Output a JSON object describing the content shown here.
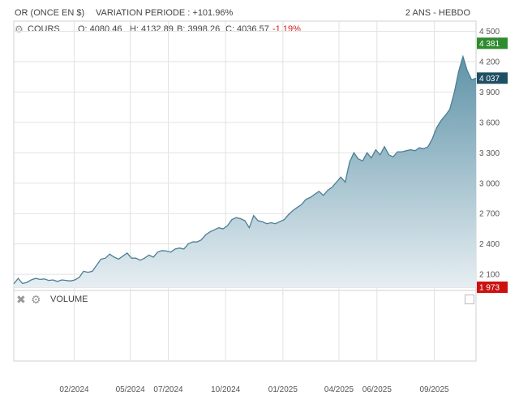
{
  "header": {
    "instrument": "OR (ONCE EN $)",
    "variation": "VARIATION PERIODE : +101.96%",
    "period": "2 ANS - HEBDO"
  },
  "toolbar": {
    "series_label": "COURS",
    "open": "O: 4080.46",
    "high": "H: 4132.89",
    "low": "B: 3998.26",
    "close": "C: 4036.57",
    "change": "-1.19%",
    "icon": "gear-icon"
  },
  "volume_panel": {
    "label": "VOLUME",
    "icons": [
      "close-icon",
      "gear-icon"
    ]
  },
  "badges": {
    "high": {
      "label": "4 381",
      "value": 4381,
      "color": "#2e8b2e"
    },
    "last": {
      "label": "4 037",
      "value": 4037,
      "color": "#1f4f63"
    },
    "low": {
      "label": "1 973",
      "value": 1973,
      "color": "#cc1111"
    }
  },
  "colors": {
    "line": "#4a7f95",
    "fill_top": "#5f93a8",
    "fill_bottom": "#e6eef2",
    "grid": "#e2e2e2"
  },
  "chart_data": {
    "type": "area",
    "ylim": [
      1973,
      4600
    ],
    "yticks": [
      2100,
      2400,
      2700,
      3000,
      3300,
      3600,
      3900,
      4200,
      4500
    ],
    "ytick_labels": [
      "2 100",
      "2 400",
      "2 700",
      "3 000",
      "3 300",
      "3 600",
      "3 900",
      "4 200",
      "4 500"
    ],
    "xtick_labels": [
      "02/2024",
      "05/2024",
      "07/2024",
      "10/2024",
      "01/2025",
      "04/2025",
      "06/2025",
      "09/2025"
    ],
    "xtick_dates": [
      "2024-02-01",
      "2024-05-01",
      "2024-07-01",
      "2024-10-01",
      "2025-01-01",
      "2025-04-01",
      "2025-06-01",
      "2025-09-01"
    ],
    "grid": true,
    "series": [
      {
        "x": [
          "2023-10-27",
          "2023-11-03",
          "2023-11-10",
          "2023-11-17",
          "2023-11-24",
          "2023-12-01",
          "2023-12-08",
          "2023-12-15",
          "2023-12-22",
          "2023-12-29",
          "2024-01-05",
          "2024-01-12",
          "2024-01-19",
          "2024-01-26",
          "2024-02-02",
          "2024-02-09",
          "2024-02-16",
          "2024-02-23",
          "2024-03-01",
          "2024-03-08",
          "2024-03-15",
          "2024-03-22",
          "2024-03-29",
          "2024-04-05",
          "2024-04-12",
          "2024-04-19",
          "2024-04-26",
          "2024-05-03",
          "2024-05-10",
          "2024-05-17",
          "2024-05-24",
          "2024-05-31",
          "2024-06-07",
          "2024-06-14",
          "2024-06-21",
          "2024-06-28",
          "2024-07-05",
          "2024-07-12",
          "2024-07-19",
          "2024-07-26",
          "2024-08-02",
          "2024-08-09",
          "2024-08-16",
          "2024-08-23",
          "2024-08-30",
          "2024-09-06",
          "2024-09-13",
          "2024-09-20",
          "2024-09-27",
          "2024-10-04",
          "2024-10-11",
          "2024-10-18",
          "2024-10-25",
          "2024-11-01",
          "2024-11-08",
          "2024-11-15",
          "2024-11-22",
          "2024-11-29",
          "2024-12-06",
          "2024-12-13",
          "2024-12-20",
          "2024-12-27",
          "2025-01-03",
          "2025-01-10",
          "2025-01-17",
          "2025-01-24",
          "2025-01-31",
          "2025-02-07",
          "2025-02-14",
          "2025-02-21",
          "2025-02-28",
          "2025-03-07",
          "2025-03-14",
          "2025-03-21",
          "2025-03-28",
          "2025-04-04",
          "2025-04-11",
          "2025-04-18",
          "2025-04-25",
          "2025-05-02",
          "2025-05-09",
          "2025-05-16",
          "2025-05-23",
          "2025-05-30",
          "2025-06-06",
          "2025-06-13",
          "2025-06-20",
          "2025-06-27",
          "2025-07-04",
          "2025-07-11",
          "2025-07-18",
          "2025-07-25",
          "2025-08-01",
          "2025-08-08",
          "2025-08-15",
          "2025-08-22",
          "2025-08-29",
          "2025-09-05",
          "2025-09-12",
          "2025-09-19",
          "2025-09-26",
          "2025-10-03",
          "2025-10-10",
          "2025-10-17",
          "2025-10-24",
          "2025-10-31",
          "2025-11-07"
        ],
        "y": [
          2006,
          2060,
          2010,
          2020,
          2045,
          2060,
          2050,
          2055,
          2040,
          2045,
          2030,
          2045,
          2040,
          2035,
          2045,
          2070,
          2130,
          2120,
          2130,
          2190,
          2250,
          2260,
          2300,
          2270,
          2250,
          2280,
          2310,
          2260,
          2260,
          2240,
          2260,
          2290,
          2270,
          2320,
          2335,
          2330,
          2320,
          2350,
          2360,
          2350,
          2400,
          2420,
          2420,
          2440,
          2490,
          2520,
          2540,
          2560,
          2550,
          2580,
          2640,
          2660,
          2650,
          2630,
          2560,
          2680,
          2630,
          2620,
          2600,
          2610,
          2600,
          2620,
          2640,
          2690,
          2730,
          2760,
          2790,
          2840,
          2860,
          2890,
          2920,
          2880,
          2930,
          2960,
          3010,
          3060,
          3010,
          3210,
          3300,
          3240,
          3220,
          3300,
          3250,
          3330,
          3280,
          3360,
          3280,
          3260,
          3310,
          3310,
          3320,
          3330,
          3320,
          3350,
          3340,
          3360,
          3440,
          3550,
          3620,
          3670,
          3730,
          3890,
          4100,
          4250,
          4110,
          4020,
          4036
        ]
      }
    ]
  }
}
